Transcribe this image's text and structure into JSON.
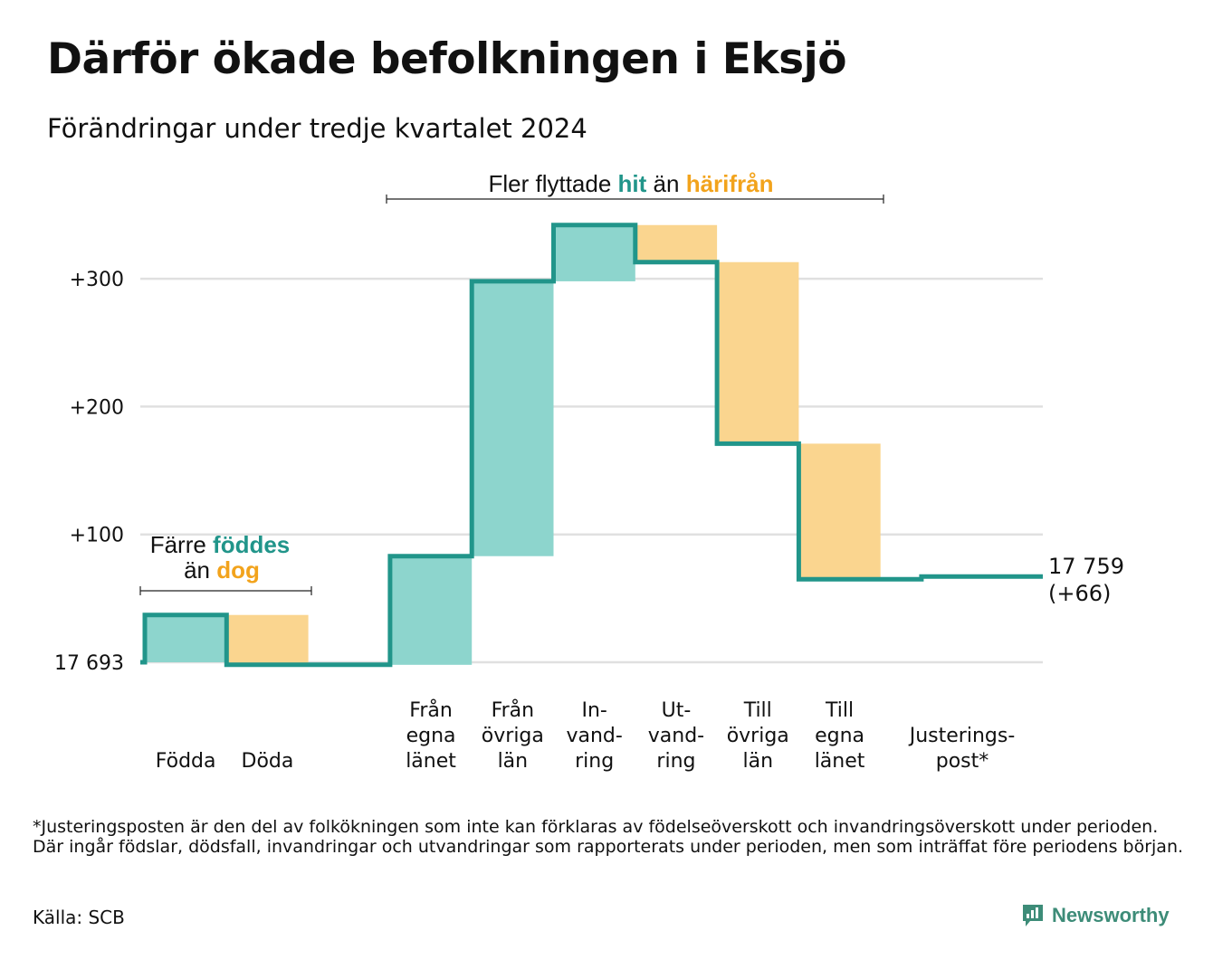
{
  "title": "Därför ökade befolkningen i Eksjö",
  "subtitle": "Förändringar under tredje kvartalet 2024",
  "colors": {
    "increase": "#8dd5cd",
    "decrease": "#fad58f",
    "line": "#21958a",
    "hit": "#21958a",
    "harifran": "#f2a31c",
    "grid": "#e0e0e0",
    "brand": "#3d8c78"
  },
  "chart_data": {
    "type": "waterfall",
    "start_value": 17693,
    "end_value": 17759,
    "end_label": [
      "17 759",
      "(+66)"
    ],
    "ylim": [
      0,
      345
    ],
    "yticks": [
      {
        "value": 0,
        "label": "17 693"
      },
      {
        "value": 100,
        "label": "+100"
      },
      {
        "value": 200,
        "label": "+200"
      },
      {
        "value": 300,
        "label": "+300"
      }
    ],
    "grid": true,
    "steps": [
      {
        "category": [
          "Födda"
        ],
        "change": 37,
        "group": 0,
        "slot": 0
      },
      {
        "category": [
          "Döda"
        ],
        "change": -39,
        "group": 0,
        "slot": 1
      },
      {
        "category": [
          "Från",
          "egna",
          "länet"
        ],
        "change": 85,
        "group": 1,
        "slot": 3
      },
      {
        "category": [
          "Från",
          "övriga",
          "län"
        ],
        "change": 215,
        "group": 1,
        "slot": 4
      },
      {
        "category": [
          "In-",
          "vand-",
          "ring"
        ],
        "change": 44,
        "group": 1,
        "slot": 5
      },
      {
        "category": [
          "Ut-",
          "vand-",
          "ring"
        ],
        "change": -29,
        "group": 1,
        "slot": 6
      },
      {
        "category": [
          "Till",
          "övriga",
          "län"
        ],
        "change": -142,
        "group": 1,
        "slot": 7
      },
      {
        "category": [
          "Till",
          "egna",
          "länet"
        ],
        "change": -106,
        "group": 1,
        "slot": 8
      },
      {
        "category": [
          "Justerings-",
          "post*"
        ],
        "change": 2,
        "group": 2,
        "slot": 9.5
      }
    ],
    "annotations": [
      {
        "parts": [
          "Fler flyttade ",
          "hit",
          " än ",
          "härifrån"
        ]
      },
      {
        "line1": [
          "Färre ",
          "föddes"
        ],
        "line2": [
          "än ",
          "dog"
        ]
      }
    ]
  },
  "footnote": "*Justeringsposten är den del av folkökningen som inte kan förklaras av födelseöverskott och invandringsöverskott under perioden. Där ingår födslar, dödsfall, invandringar och utvandringar som rapporterats under perioden, men som inträffat före periodens början.",
  "source": "Källa: SCB",
  "brand": "Newsworthy"
}
